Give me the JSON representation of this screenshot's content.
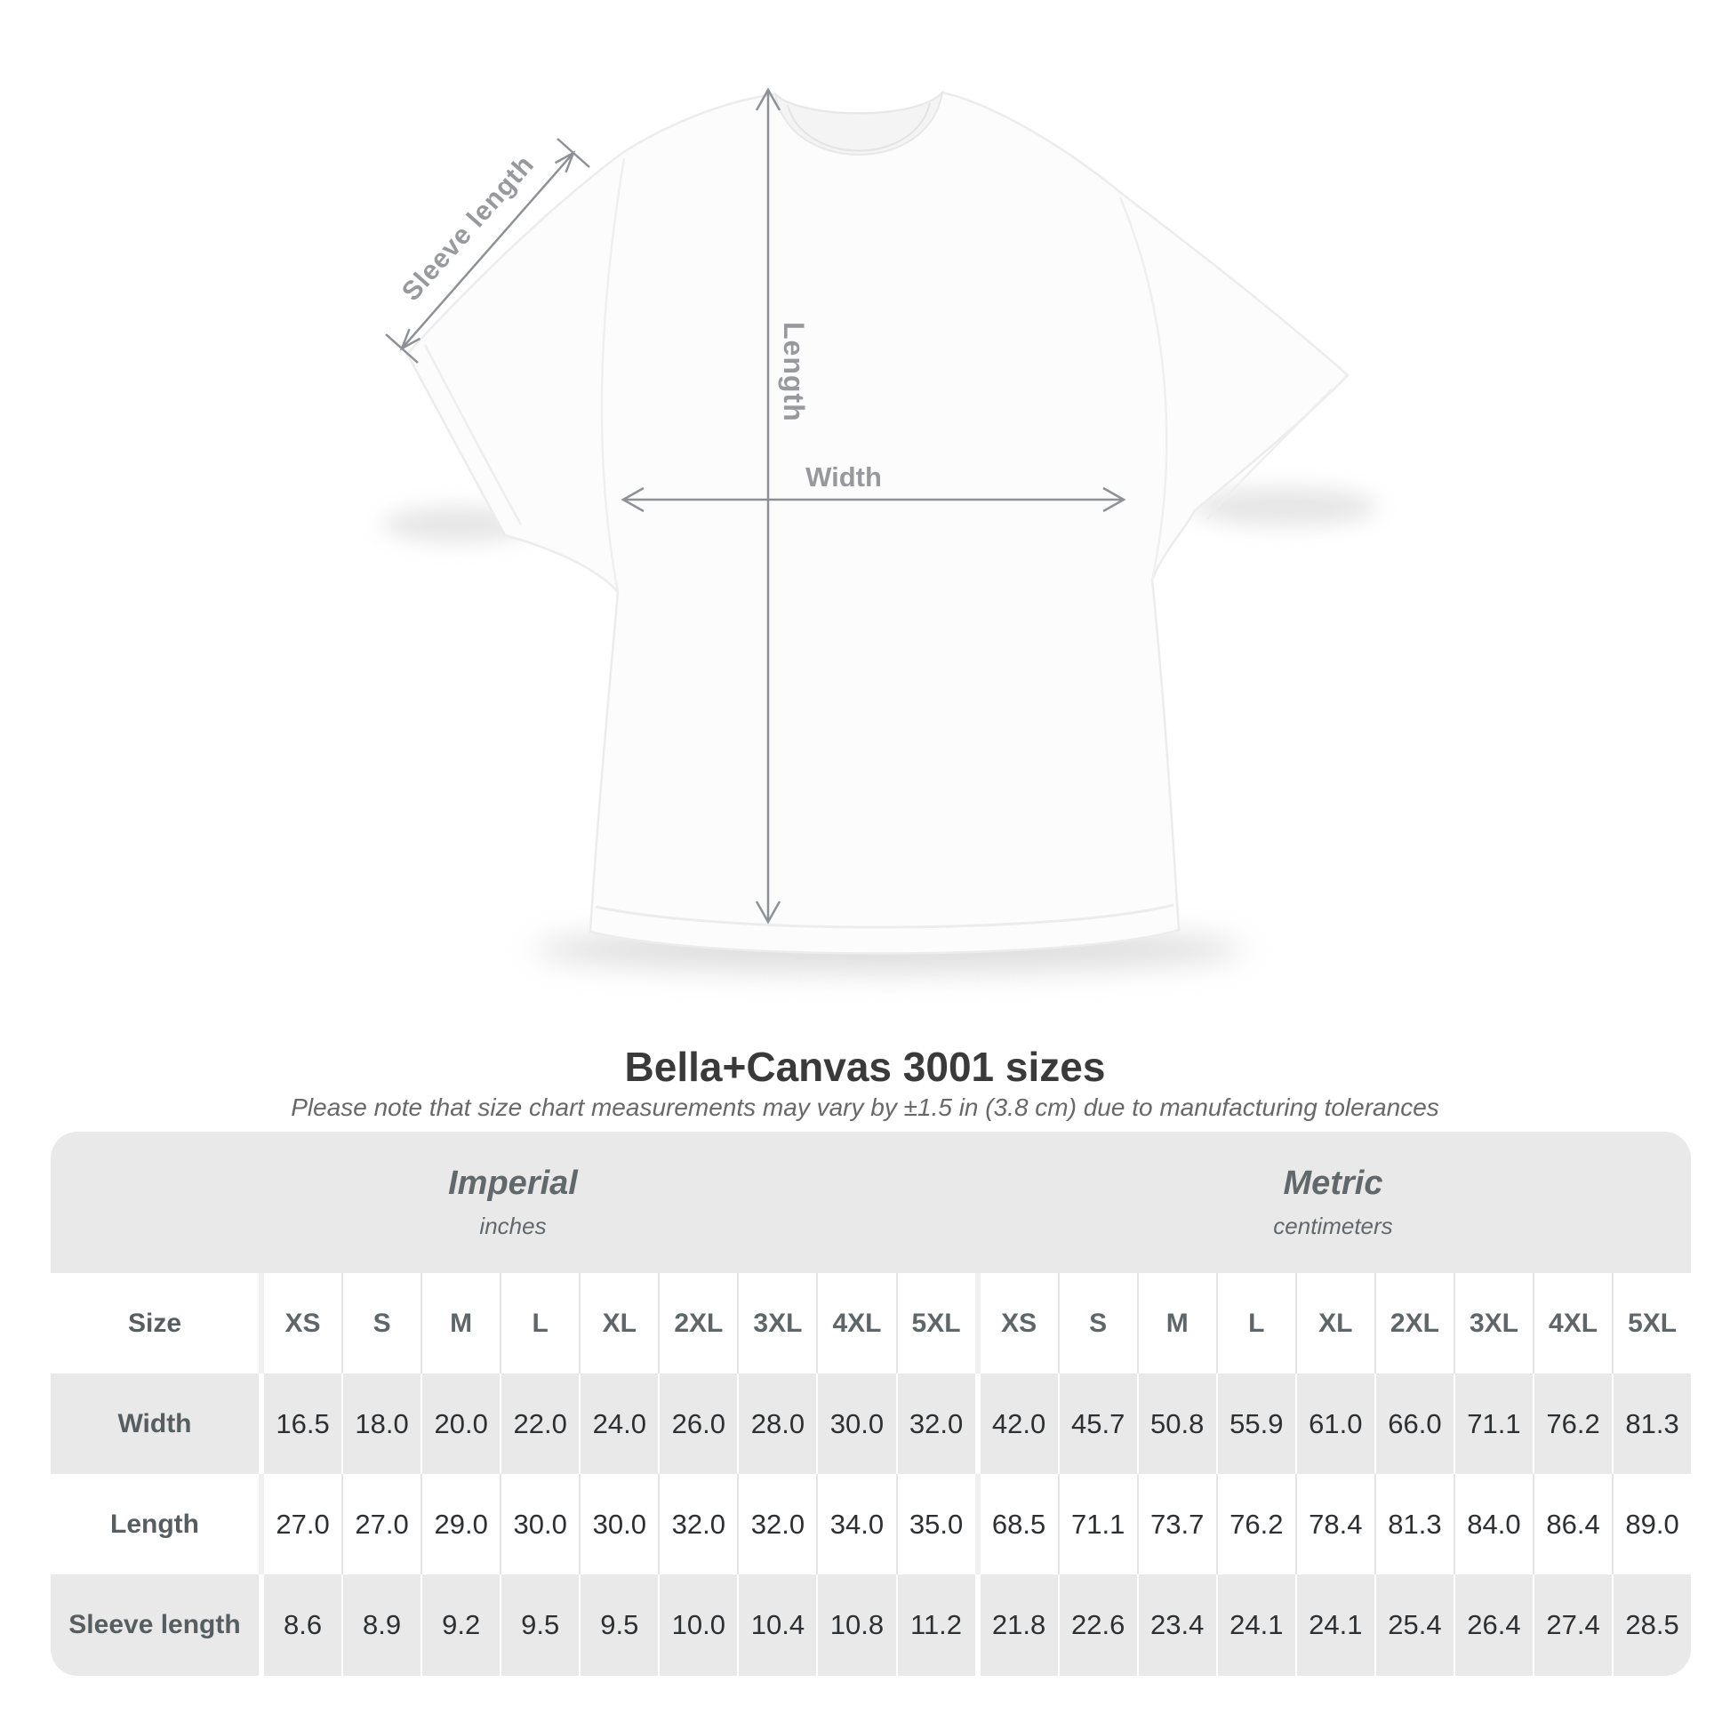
{
  "shirt_diagram": {
    "sleeve_length_label": "Sleeve length",
    "length_label": "Length",
    "width_label": "Width",
    "annotation_text_color": "#97999c",
    "annotation_line_color": "#8d9195"
  },
  "heading": {
    "title": "Bella+Canvas 3001 sizes",
    "subtitle": "Please note that size chart measurements may vary by ±1.5 in (3.8 cm) due to manufacturing tolerances"
  },
  "size_table": {
    "corner_label": "Size",
    "band_color": "#e9e9e9",
    "alt_row_color": "#e9e9e9",
    "label_text_color": "#565e62",
    "value_text_color": "#2d3032"
  },
  "chart_data": {
    "type": "table",
    "title": "Bella+Canvas 3001 sizes",
    "note": "Please note that size chart measurements may vary by ±1.5 in (3.8 cm) due to manufacturing tolerances",
    "column_groups": [
      {
        "name": "Imperial",
        "unit": "inches",
        "sizes": [
          "XS",
          "S",
          "M",
          "L",
          "XL",
          "2XL",
          "3XL",
          "4XL",
          "5XL"
        ]
      },
      {
        "name": "Metric",
        "unit": "centimeters",
        "sizes": [
          "XS",
          "S",
          "M",
          "L",
          "XL",
          "2XL",
          "3XL",
          "4XL",
          "5XL"
        ]
      }
    ],
    "rows": [
      {
        "measurement": "Width",
        "imperial_in": [
          16.5,
          18.0,
          20.0,
          22.0,
          24.0,
          26.0,
          28.0,
          30.0,
          32.0
        ],
        "metric_cm": [
          42.0,
          45.7,
          50.8,
          55.9,
          61.0,
          66.0,
          71.1,
          76.2,
          81.3
        ]
      },
      {
        "measurement": "Length",
        "imperial_in": [
          27.0,
          27.0,
          29.0,
          30.0,
          30.0,
          32.0,
          32.0,
          34.0,
          35.0
        ],
        "metric_cm": [
          68.5,
          71.1,
          73.7,
          76.2,
          78.4,
          81.3,
          84.0,
          86.4,
          89.0
        ]
      },
      {
        "measurement": "Sleeve length",
        "imperial_in": [
          8.6,
          8.9,
          9.2,
          9.5,
          9.5,
          10.0,
          10.4,
          10.8,
          11.2
        ],
        "metric_cm": [
          21.8,
          22.6,
          23.4,
          24.1,
          24.1,
          25.4,
          26.4,
          27.4,
          28.5
        ]
      }
    ]
  }
}
